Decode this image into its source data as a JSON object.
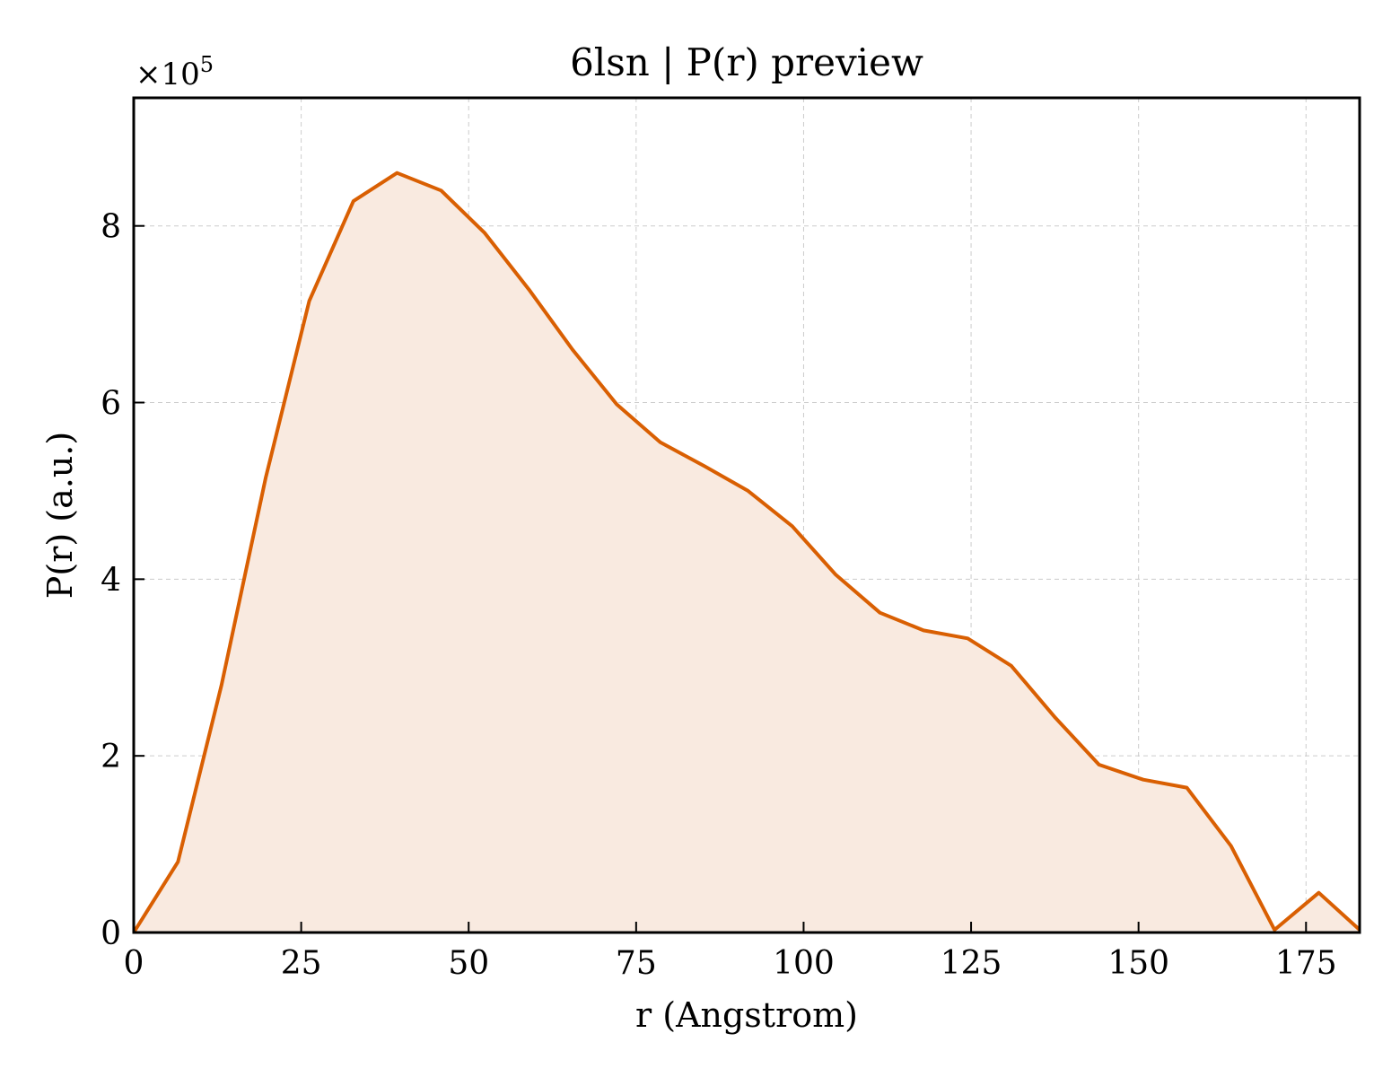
{
  "chart_data": {
    "type": "area",
    "title": "6lsn | P(r) preview",
    "xlabel": "r (Angstrom)",
    "ylabel": "P(r) (a.u.)",
    "y_multiplier_label": "×10",
    "y_multiplier_exponent": "5",
    "xlim": [
      0,
      183
    ],
    "ylim": [
      0,
      9.45
    ],
    "xticks": [
      0,
      25,
      50,
      75,
      100,
      125,
      150,
      175
    ],
    "yticks": [
      0,
      2,
      4,
      6,
      8
    ],
    "grid": true,
    "line_color": "#d95f02",
    "fill_color": "#f9eae0",
    "series": [
      {
        "x": [
          0,
          6.6,
          13.1,
          19.7,
          26.2,
          32.8,
          39.3,
          45.9,
          52.4,
          59.0,
          65.5,
          72.1,
          78.6,
          85.2,
          91.7,
          98.3,
          104.8,
          111.4,
          117.9,
          124.5,
          131.0,
          137.6,
          144.1,
          150.7,
          157.2,
          163.8,
          170.3,
          176.9,
          183.0
        ],
        "y": [
          0.0,
          0.8,
          2.8,
          5.15,
          7.15,
          8.28,
          8.6,
          8.4,
          7.92,
          7.28,
          6.6,
          5.98,
          5.55,
          5.28,
          5.0,
          4.6,
          4.05,
          3.62,
          3.42,
          3.33,
          3.02,
          2.43,
          1.9,
          1.73,
          1.64,
          0.98,
          0.03,
          0.45,
          0.03
        ]
      }
    ]
  }
}
